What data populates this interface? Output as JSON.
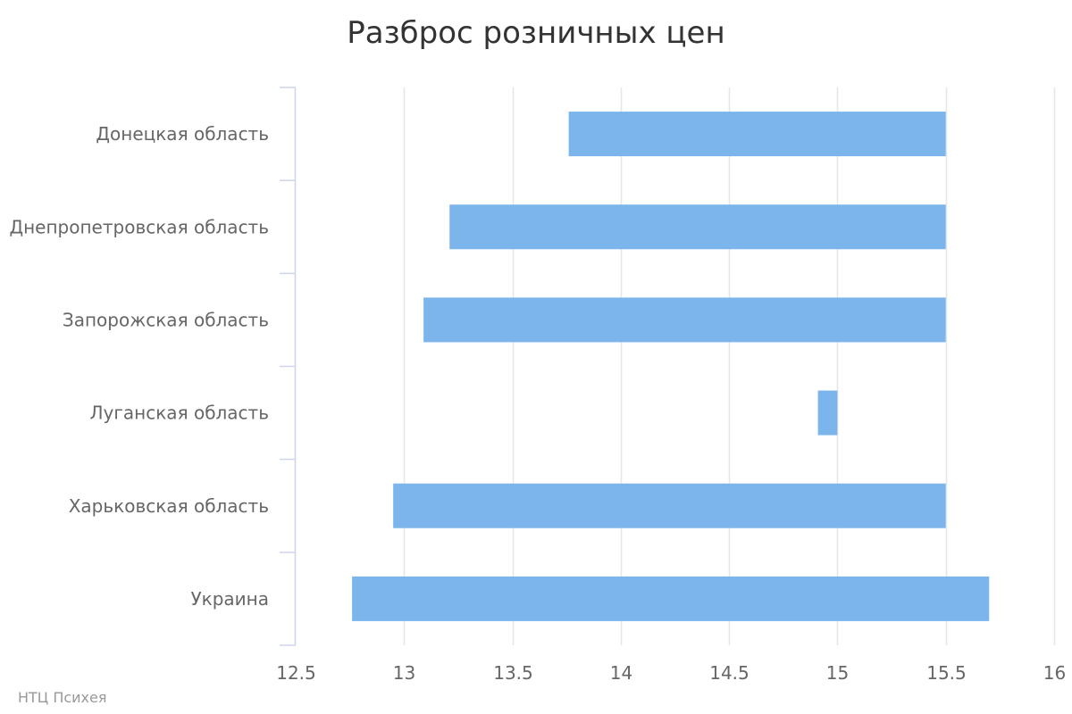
{
  "chart_data": {
    "type": "bar",
    "orientation": "horizontal",
    "subtype": "range",
    "title": "Разброс розничных цен",
    "categories": [
      "Донецкая область",
      "Днепропетровская область",
      "Запорожская область",
      "Луганская область",
      "Харьковская область",
      "Украина"
    ],
    "series": [
      {
        "low": [
          13.76,
          13.21,
          13.09,
          14.91,
          12.95,
          12.76
        ],
        "high": [
          15.5,
          15.5,
          15.5,
          15.0,
          15.5,
          15.7
        ]
      }
    ],
    "xlim": [
      12.5,
      16
    ],
    "x_ticks": [
      "12.5",
      "13",
      "13.5",
      "14",
      "14.5",
      "15",
      "15.5",
      "16"
    ],
    "x_tick_values": [
      12.5,
      13,
      13.5,
      14,
      14.5,
      15,
      15.5,
      16
    ],
    "grid": true,
    "legend": "none",
    "bar_color": "#7cb5ec",
    "grid_color": "#e6e6e6",
    "axis_color": "#ccd6eb"
  },
  "credits": "НТЦ Психея"
}
